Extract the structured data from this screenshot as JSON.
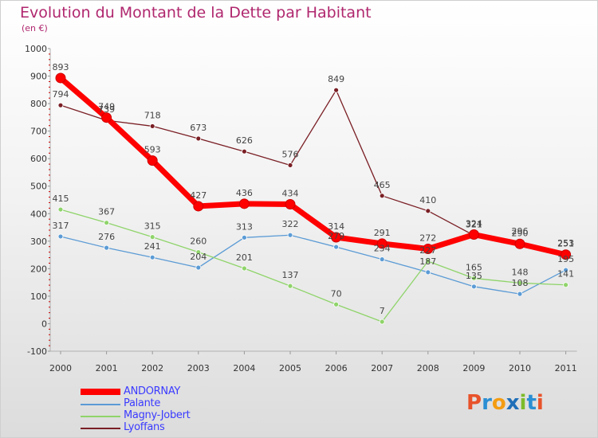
{
  "title": "Evolution du Montant de la Dette par Habitant",
  "subtitle": "(en €)",
  "brand": {
    "letters": [
      "P",
      "r",
      "o",
      "x",
      "i",
      "t",
      "i"
    ],
    "colors": [
      "#e8532b",
      "#2a8fd4",
      "#f39c12",
      "#1f6fb8",
      "#7dbb2b",
      "#2a8fd4",
      "#e8532b"
    ]
  },
  "chart_data": {
    "type": "line",
    "x": [
      "2000",
      "2001",
      "2002",
      "2003",
      "2004",
      "2005",
      "2006",
      "2007",
      "2008",
      "2009",
      "2010",
      "2011"
    ],
    "ylim": [
      -100,
      1000
    ],
    "yticks": [
      "-100",
      "0",
      "100",
      "200",
      "300",
      "400",
      "500",
      "600",
      "700",
      "800",
      "900",
      "1000"
    ],
    "grid": false,
    "legend_position": "bottom-left",
    "series": [
      {
        "name": "Lyoffans",
        "color": "#7a1f25",
        "values": [
          794,
          739,
          718,
          673,
          626,
          576,
          849,
          465,
          410,
          321,
          296,
          253
        ]
      },
      {
        "name": "Palante",
        "color": "#5b9bd5",
        "values": [
          317,
          276,
          241,
          204,
          313,
          322,
          279,
          234,
          187,
          135,
          108,
          195
        ]
      },
      {
        "name": "Magny-Jobert",
        "color": "#8fd46a",
        "values": [
          415,
          367,
          315,
          260,
          201,
          137,
          70,
          7,
          227,
          165,
          148,
          141
        ]
      },
      {
        "name": "ANDORNAY",
        "color": "#ff0000",
        "values": [
          893,
          749,
          593,
          427,
          436,
          434,
          314,
          291,
          272,
          324,
          290,
          251
        ]
      }
    ],
    "legend_order": [
      "ANDORNAY",
      "Palante",
      "Magny-Jobert",
      "Lyoffans"
    ]
  }
}
